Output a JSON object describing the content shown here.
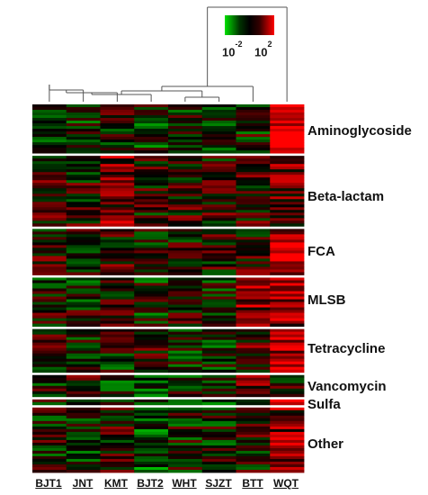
{
  "chart_data": {
    "type": "heatmap",
    "title": "",
    "columns": [
      "BJT1",
      "JNT",
      "KMT",
      "BJT2",
      "WHT",
      "SJZT",
      "BTT",
      "WQT"
    ],
    "column_cluster_order": [
      "WQT",
      "BTT",
      "SJZT",
      "WHT",
      "BJT2",
      "KMT",
      "JNT",
      "BJT1"
    ],
    "row_groups": [
      {
        "name": "Aminoglycoside",
        "rows": 18,
        "level": [
          -0.2,
          -0.3,
          0.1,
          -0.3,
          -0.2,
          -0.3,
          -0.1,
          1.9
        ]
      },
      {
        "name": "Beta-lactam",
        "rows": 26,
        "level": [
          0.2,
          0.1,
          0.7,
          0.1,
          0.2,
          0.2,
          0.3,
          0.6
        ]
      },
      {
        "name": "FCA",
        "rows": 17,
        "level": [
          0.2,
          0.1,
          0.3,
          0.0,
          0.1,
          0.2,
          0.2,
          1.2
        ]
      },
      {
        "name": "MLSB",
        "rows": 18,
        "level": [
          0.0,
          -0.1,
          0.1,
          -0.2,
          0.0,
          -0.1,
          0.9,
          1.0
        ]
      },
      {
        "name": "Tetracycline",
        "rows": 16,
        "level": [
          0.1,
          -0.2,
          -0.1,
          0.4,
          -0.1,
          -0.2,
          0.4,
          1.3
        ]
      },
      {
        "name": "Vancomycin",
        "rows": 8,
        "level": [
          0.0,
          0.4,
          -0.2,
          -0.3,
          -0.2,
          -0.3,
          0.7,
          0.3
        ]
      },
      {
        "name": "Sulfa",
        "rows": 2,
        "level": [
          -0.2,
          -0.3,
          -0.3,
          -0.3,
          -0.3,
          -0.3,
          -0.1,
          1.7
        ]
      },
      {
        "name": "Other",
        "rows": 24,
        "level": [
          0.0,
          -0.2,
          0.1,
          -0.5,
          -0.1,
          -0.1,
          0.1,
          0.8
        ]
      }
    ],
    "color_scale": {
      "low": "#00e000",
      "mid": "#000000",
      "high": "#ff0000",
      "min_label": "10",
      "min_exp": "-2",
      "max_label": "10",
      "max_exp": "2"
    }
  }
}
